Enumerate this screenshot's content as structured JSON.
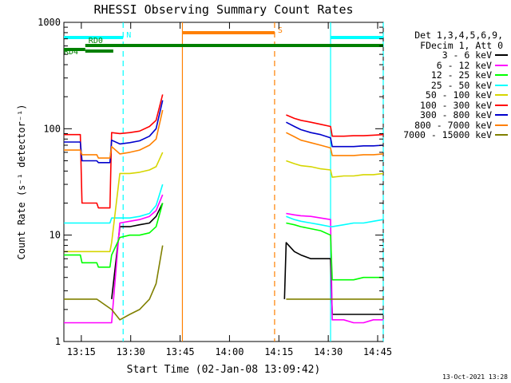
{
  "chart_data": {
    "type": "line",
    "title": "RHESSI Observing Summary Count Rates",
    "xlabel": "Start Time (02-Jan-08 13:09:42)",
    "ylabel": "Count Rate (s⁻¹ detector⁻¹)",
    "yscale": "log",
    "ylim": [
      1,
      1000
    ],
    "xlim_minutes": [
      0,
      97
    ],
    "x_tick_labels": [
      "13:15",
      "13:30",
      "13:45",
      "14:00",
      "14:15",
      "14:30",
      "14:45"
    ],
    "y_tick_labels": [
      "1",
      "10",
      "100",
      "1000"
    ],
    "legend_header": [
      "Det 1,3,4,5,6,9,",
      "FDecim 1, Att 0"
    ],
    "series": [
      {
        "name": "3 - 6 keV",
        "color": "#000000",
        "x": [
          0,
          5,
          5.5,
          10,
          10.5,
          14,
          14.5,
          17,
          20,
          23,
          26,
          28,
          30,
          32.5,
          33,
          33.5,
          67,
          67.5,
          70,
          72,
          75,
          78,
          81,
          81.5,
          85,
          88,
          91,
          94,
          97
        ],
        "y": [
          null,
          null,
          null,
          null,
          null,
          null,
          2.5,
          12,
          12,
          12.5,
          13,
          15,
          20,
          null,
          null,
          null,
          2.5,
          8.5,
          7,
          6.5,
          6,
          6,
          6,
          1.8,
          1.8,
          1.8,
          1.8,
          1.8,
          1.8
        ]
      },
      {
        "name": "6 - 12 keV",
        "color": "#ff00ff",
        "x": [
          0,
          5,
          10,
          14.5,
          17,
          20,
          23,
          26,
          28,
          30,
          32.5,
          33,
          67,
          67.5,
          70,
          72,
          75,
          78,
          81,
          81.5,
          85,
          88,
          91,
          94,
          97
        ],
        "y": [
          1.5,
          1.5,
          1.5,
          1.5,
          13,
          13.5,
          14,
          15,
          17,
          24,
          null,
          null,
          null,
          16,
          15.5,
          15.2,
          15,
          14.5,
          14,
          1.6,
          1.6,
          1.5,
          1.5,
          1.6,
          1.6
        ]
      },
      {
        "name": "12 - 25 keV",
        "color": "#00ff00",
        "x": [
          0,
          5,
          5.5,
          10,
          10.5,
          14,
          14.5,
          17,
          20,
          23,
          26,
          28,
          30,
          32.5,
          33,
          67,
          67.5,
          70,
          72,
          75,
          78,
          81,
          81.5,
          85,
          88,
          91,
          94,
          97
        ],
        "y": [
          6.5,
          6.5,
          5.5,
          5.5,
          5,
          5,
          6.5,
          9.5,
          10,
          10,
          10.5,
          12,
          20,
          null,
          null,
          null,
          13,
          12.5,
          12,
          11.5,
          11,
          10,
          3.8,
          3.8,
          3.8,
          4,
          4,
          4
        ]
      },
      {
        "name": "25 - 50 keV",
        "color": "#00ffff",
        "x": [
          0,
          5,
          5.5,
          10,
          10.5,
          14,
          14.5,
          17,
          20,
          23,
          26,
          28,
          30,
          32.5,
          33,
          67,
          67.5,
          70,
          72,
          75,
          78,
          81,
          81.5,
          85,
          88,
          91,
          94,
          97
        ],
        "y": [
          13,
          13,
          13,
          13,
          13,
          13,
          14.5,
          14.5,
          14.5,
          15,
          16,
          19,
          30,
          null,
          null,
          null,
          15,
          14,
          13.5,
          13,
          12.5,
          12,
          12,
          12.5,
          13,
          13,
          13.5,
          14
        ]
      },
      {
        "name": "50 - 100 keV",
        "color": "#d6d600",
        "x": [
          0,
          5,
          5.5,
          10,
          10.5,
          14,
          14.5,
          17,
          20,
          23,
          26,
          28,
          30,
          32.5,
          33,
          67,
          67.5,
          70,
          72,
          75,
          78,
          81,
          81.5,
          85,
          88,
          91,
          94,
          97
        ],
        "y": [
          7,
          7,
          7,
          7,
          7,
          7,
          8.5,
          38,
          38,
          39,
          41,
          44,
          60,
          null,
          null,
          null,
          50,
          47,
          45,
          44,
          42,
          41,
          35,
          36,
          36,
          37,
          37,
          38
        ]
      },
      {
        "name": "100 - 300 keV",
        "color": "#ff0000",
        "x": [
          0,
          5,
          5.5,
          10,
          10.5,
          14,
          14.5,
          17,
          20,
          23,
          26,
          28,
          30,
          32.5,
          33,
          67,
          67.5,
          70,
          72,
          75,
          78,
          81,
          81.5,
          85,
          88,
          91,
          94,
          97
        ],
        "y": [
          88,
          88,
          20,
          20,
          18,
          18,
          92,
          90,
          92,
          95,
          105,
          120,
          210,
          null,
          null,
          null,
          135,
          125,
          120,
          115,
          110,
          105,
          85,
          85,
          86,
          86,
          87,
          88
        ]
      },
      {
        "name": "300 - 800 keV",
        "color": "#0000cc",
        "x": [
          0,
          5,
          5.5,
          10,
          10.5,
          14,
          14.5,
          17,
          20,
          23,
          26,
          28,
          30,
          32.5,
          33,
          67,
          67.5,
          70,
          72,
          75,
          78,
          81,
          81.5,
          85,
          88,
          91,
          94,
          97
        ],
        "y": [
          75,
          75,
          50,
          50,
          48,
          48,
          78,
          72,
          74,
          77,
          85,
          100,
          185,
          null,
          null,
          null,
          115,
          105,
          98,
          92,
          88,
          82,
          68,
          68,
          68,
          69,
          69,
          70
        ]
      },
      {
        "name": "800 - 7000 keV",
        "color": "#ff8000",
        "x": [
          0,
          5,
          5.5,
          10,
          10.5,
          14,
          14.5,
          17,
          20,
          23,
          26,
          28,
          30,
          32.5,
          33,
          67,
          67.5,
          70,
          72,
          75,
          78,
          81,
          81.5,
          85,
          88,
          91,
          94,
          97
        ],
        "y": [
          63,
          63,
          57,
          57,
          53,
          53,
          68,
          58,
          60,
          63,
          70,
          80,
          150,
          null,
          null,
          null,
          92,
          84,
          78,
          74,
          70,
          66,
          56,
          56,
          56,
          57,
          57,
          58
        ]
      },
      {
        "name": "7000 - 15000 keV",
        "color": "#808000",
        "x": [
          0,
          5,
          10,
          14.5,
          17,
          20,
          23,
          26,
          28,
          30,
          32.5,
          33,
          67,
          67.5,
          70,
          72,
          75,
          78,
          81,
          81.5,
          85,
          88,
          91,
          94,
          97
        ],
        "y": [
          2.5,
          2.5,
          2.5,
          2,
          1.6,
          1.8,
          2,
          2.5,
          3.5,
          8,
          null,
          null,
          null,
          2.5,
          2.5,
          2.5,
          2.5,
          2.5,
          2.5,
          2.5,
          2.5,
          2.5,
          2.5,
          2.5,
          2.5
        ]
      }
    ],
    "status_bars": [
      {
        "label": "N",
        "color": "#00ffff"
      },
      {
        "label": "",
        "color": "#00ffff"
      },
      {
        "label": "S",
        "color": "#ff8000"
      },
      {
        "label": "RD0",
        "color": "#008000"
      },
      {
        "label": "",
        "color": "#008000"
      },
      {
        "label": "RD4",
        "color": "#008000"
      }
    ],
    "status_bar_ranges": [
      [
        0,
        18
      ],
      [
        81,
        97
      ],
      [
        36,
        64
      ],
      [
        6.5,
        97
      ],
      [
        6.5,
        15
      ],
      [
        0,
        6.5
      ]
    ],
    "vertical_markers": [
      {
        "x": 18,
        "color": "#00ffff",
        "style": "dashed"
      },
      {
        "x": 36,
        "color": "#ff8000",
        "style": "solid"
      },
      {
        "x": 64,
        "color": "#ff8000",
        "style": "dashed"
      },
      {
        "x": 81,
        "color": "#00ffff",
        "style": "solid"
      },
      {
        "x": 97,
        "color": "#00ffff",
        "style": "dashed"
      }
    ]
  },
  "timestamp": "13-Oct-2021 13:28"
}
